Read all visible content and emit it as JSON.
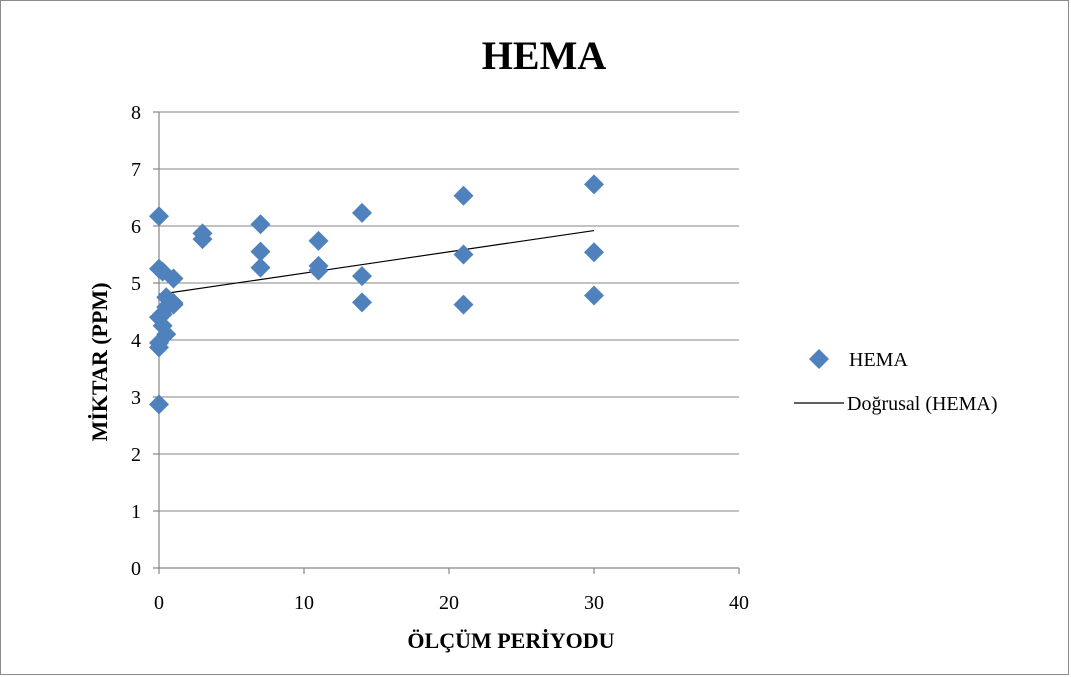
{
  "chart_data": {
    "type": "scatter",
    "title": "HEMA",
    "xlabel": "ÖLÇÜM PERİYODU",
    "ylabel": "MİKTAR (PPM)",
    "xlim": [
      0,
      40
    ],
    "ylim": [
      0,
      8
    ],
    "x_ticks": [
      "0",
      "10",
      "20",
      "30",
      "40"
    ],
    "y_ticks": [
      "0",
      "1",
      "2",
      "3",
      "4",
      "5",
      "6",
      "7",
      "8"
    ],
    "grid": "horizontal",
    "legend_position": "right",
    "colors": {
      "marker": "#4f81bd",
      "trendline": "#000000"
    },
    "series": [
      {
        "name": "HEMA",
        "marker": "diamond",
        "x": [
          0,
          0,
          0,
          0,
          0,
          0,
          0.25,
          0.25,
          0.25,
          0.5,
          0.5,
          0.5,
          1,
          1,
          1,
          3,
          3,
          7,
          7,
          7,
          11,
          11,
          11,
          14,
          14,
          14,
          21,
          21,
          21,
          30,
          30,
          30
        ],
        "y": [
          6.17,
          5.25,
          4.4,
          3.95,
          3.87,
          2.87,
          5.2,
          4.45,
          4.25,
          4.75,
          4.58,
          4.1,
          5.08,
          4.65,
          4.62,
          5.87,
          5.77,
          6.03,
          5.55,
          5.27,
          5.74,
          5.3,
          5.22,
          6.23,
          5.12,
          4.66,
          6.53,
          5.5,
          4.62,
          6.73,
          5.54,
          4.78
        ]
      }
    ],
    "trendline": {
      "name": "Doğrusal (HEMA)",
      "type": "linear",
      "x": [
        0,
        30
      ],
      "y": [
        4.8,
        5.92
      ]
    }
  }
}
